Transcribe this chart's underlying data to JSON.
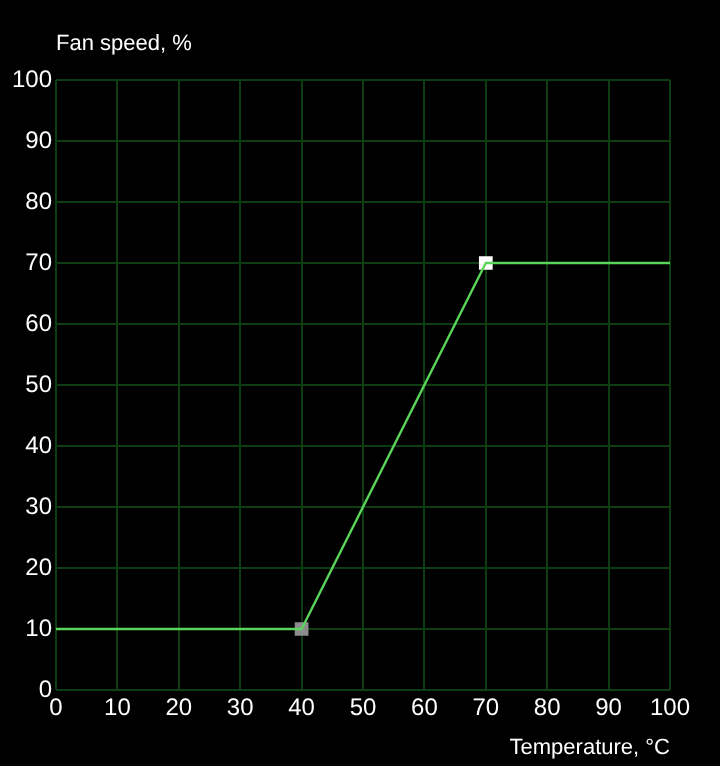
{
  "chart_data": {
    "type": "line",
    "xlabel": "Temperature, °C",
    "ylabel": "Fan speed, %",
    "series": [
      {
        "color": "#5ad45a",
        "x": [
          0,
          40,
          70,
          100
        ],
        "values": [
          10,
          10,
          70,
          70
        ],
        "marker": "none"
      },
      {
        "type": "scatter",
        "colors": [
          "#8c8c8c",
          "#ffffff"
        ],
        "x": [
          40,
          70
        ],
        "values": [
          10,
          70
        ],
        "marker": "square"
      }
    ],
    "xlim": [
      0,
      100
    ],
    "xticks": [
      0,
      10,
      20,
      30,
      40,
      50,
      60,
      70,
      80,
      90,
      100
    ],
    "ylim": [
      0,
      100
    ],
    "yticks": [
      0,
      10,
      20,
      30,
      40,
      50,
      60,
      70,
      80,
      90,
      100
    ],
    "grid": true,
    "legend": false
  }
}
